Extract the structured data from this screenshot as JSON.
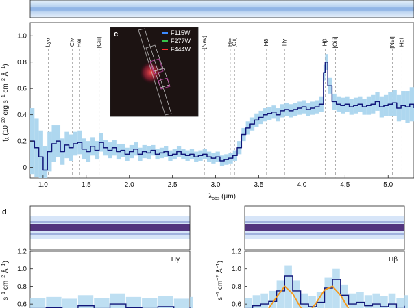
{
  "panel_letters": {
    "inset": "c",
    "bottom": "d"
  },
  "legend": [
    {
      "label": "F115W",
      "color": "#3d8cff"
    },
    {
      "label": "F277W",
      "color": "#36c24a"
    },
    {
      "label": "F444W",
      "color": "#ff3030"
    }
  ],
  "colors": {
    "spectrum_line": "#11177a",
    "error_band": "#aed7ef",
    "fit_curve": "#f39a1f",
    "emission_marker": "#9a9a9a",
    "spectrum2d_dark": "#3a0a5a"
  },
  "chart_data": [
    {
      "id": "main-spectrum",
      "type": "line",
      "ylabel": "f_λ (10⁻²⁰ erg s⁻¹ cm⁻² Å⁻¹)",
      "ylabel_parts": {
        "base": "f",
        "sub": "λ",
        "mid": " (10",
        "sup1": "−20",
        "mid2": " erg s",
        "sup2": "−1",
        "mid3": " cm",
        "sup3": "−2",
        "mid4": " Å",
        "sup4": "−1",
        "end": ")"
      },
      "xlabel_parts": {
        "base": "λ",
        "sub": "obs",
        "end": " (μm)"
      },
      "xlim": [
        0.85,
        5.3
      ],
      "ylim": [
        -0.08,
        1.1
      ],
      "xticks": [
        1.0,
        1.5,
        2.0,
        2.5,
        3.0,
        3.5,
        4.0,
        4.5,
        5.0
      ],
      "xtick_labels": [
        "1.0",
        "1.5",
        "2.0",
        "2.5",
        "3.0",
        "3.5",
        "4.0",
        "4.5",
        "5.0"
      ],
      "yticks": [
        0,
        0.2,
        0.4,
        0.6,
        0.8,
        1.0
      ],
      "ytick_labels": [
        "0",
        "0.2",
        "0.4",
        "0.6",
        "0.8",
        "1.0"
      ],
      "emission_lines": [
        {
          "label": "Lyα",
          "x": 1.06
        },
        {
          "label": "Civ",
          "x": 1.34
        },
        {
          "label": "Heii",
          "x": 1.42
        },
        {
          "label": "[Ciii]",
          "x": 1.65
        },
        {
          "label": "[Nev]",
          "x": 2.87
        },
        {
          "label": "H∞",
          "x": 3.17
        },
        {
          "label": "[Oii]",
          "x": 3.22
        },
        {
          "label": "Hδ",
          "x": 3.59
        },
        {
          "label": "Hγ",
          "x": 3.8
        },
        {
          "label": "Hβ",
          "x": 4.27
        },
        {
          "label": "[Oiii]",
          "x": 4.39
        },
        {
          "label": "[Nei]",
          "x": 5.05
        },
        {
          "label": "Hei",
          "x": 5.16
        }
      ],
      "series": [
        {
          "x": [
            0.85,
            0.9,
            0.95,
            1.0,
            1.05,
            1.1,
            1.15,
            1.2,
            1.25,
            1.3,
            1.35,
            1.4,
            1.45,
            1.5,
            1.55,
            1.6,
            1.65,
            1.7,
            1.75,
            1.8,
            1.85,
            1.9,
            1.95,
            2.0,
            2.05,
            2.1,
            2.15,
            2.2,
            2.25,
            2.3,
            2.35,
            2.4,
            2.45,
            2.5,
            2.55,
            2.6,
            2.65,
            2.7,
            2.75,
            2.8,
            2.85,
            2.9,
            2.95,
            3.0,
            3.05,
            3.1,
            3.15,
            3.2,
            3.25,
            3.3,
            3.35,
            3.4,
            3.45,
            3.5,
            3.55,
            3.6,
            3.65,
            3.7,
            3.75,
            3.8,
            3.85,
            3.9,
            3.95,
            4.0,
            4.05,
            4.1,
            4.15,
            4.2,
            4.25,
            4.27,
            4.3,
            4.35,
            4.4,
            4.45,
            4.5,
            4.55,
            4.6,
            4.65,
            4.7,
            4.75,
            4.8,
            4.85,
            4.9,
            4.95,
            5.0,
            5.05,
            5.1,
            5.15,
            5.2,
            5.25,
            5.3
          ],
          "y": [
            0.2,
            0.15,
            0.08,
            -0.02,
            0.12,
            0.18,
            0.2,
            0.12,
            0.17,
            0.15,
            0.18,
            0.19,
            0.14,
            0.12,
            0.16,
            0.13,
            0.19,
            0.15,
            0.13,
            0.15,
            0.12,
            0.13,
            0.1,
            0.12,
            0.14,
            0.1,
            0.12,
            0.11,
            0.13,
            0.1,
            0.11,
            0.12,
            0.09,
            0.1,
            0.12,
            0.1,
            0.09,
            0.1,
            0.08,
            0.09,
            0.1,
            0.08,
            0.07,
            0.08,
            0.05,
            0.06,
            0.07,
            0.09,
            0.15,
            0.25,
            0.3,
            0.33,
            0.36,
            0.38,
            0.4,
            0.41,
            0.42,
            0.4,
            0.43,
            0.44,
            0.43,
            0.44,
            0.45,
            0.46,
            0.44,
            0.45,
            0.46,
            0.48,
            0.72,
            0.8,
            0.62,
            0.5,
            0.48,
            0.47,
            0.48,
            0.46,
            0.47,
            0.48,
            0.46,
            0.47,
            0.48,
            0.5,
            0.46,
            0.47,
            0.48,
            0.49,
            0.45,
            0.47,
            0.46,
            0.48,
            0.45
          ],
          "err": [
            0.25,
            0.22,
            0.2,
            0.18,
            0.15,
            0.14,
            0.12,
            0.1,
            0.1,
            0.1,
            0.09,
            0.09,
            0.08,
            0.08,
            0.07,
            0.07,
            0.07,
            0.06,
            0.06,
            0.06,
            0.06,
            0.05,
            0.05,
            0.05,
            0.05,
            0.05,
            0.05,
            0.05,
            0.04,
            0.04,
            0.04,
            0.04,
            0.04,
            0.04,
            0.04,
            0.04,
            0.04,
            0.04,
            0.04,
            0.04,
            0.04,
            0.04,
            0.04,
            0.04,
            0.04,
            0.04,
            0.04,
            0.04,
            0.05,
            0.05,
            0.05,
            0.05,
            0.05,
            0.05,
            0.05,
            0.05,
            0.05,
            0.05,
            0.05,
            0.05,
            0.05,
            0.05,
            0.05,
            0.05,
            0.05,
            0.05,
            0.05,
            0.06,
            0.06,
            0.06,
            0.06,
            0.06,
            0.06,
            0.06,
            0.06,
            0.06,
            0.06,
            0.06,
            0.06,
            0.07,
            0.07,
            0.07,
            0.08,
            0.08,
            0.09,
            0.1,
            0.1,
            0.11,
            0.12,
            0.13,
            0.14
          ]
        }
      ]
    },
    {
      "id": "h-gamma-zoom",
      "type": "line",
      "title": "Hγ",
      "ylabel": "s⁻¹ cm⁻² Å⁻¹)",
      "ylabel_parts": {
        "base": "s",
        "sup1": "−1",
        "mid": " cm",
        "sup2": "−2",
        "mid2": " Å",
        "sup3": "−1",
        "end": ")"
      },
      "ylim": [
        0.5,
        1.2
      ],
      "yticks": [
        0.6,
        0.8,
        1.0,
        1.2
      ],
      "ytick_labels": [
        "0.6",
        "0.8",
        "1.0",
        "1.2"
      ],
      "series": [
        {
          "x": [
            0.0,
            0.1,
            0.2,
            0.3,
            0.4,
            0.5,
            0.6,
            0.7,
            0.8,
            0.9,
            1.0
          ],
          "y": [
            0.55,
            0.56,
            0.54,
            0.58,
            0.55,
            0.6,
            0.56,
            0.55,
            0.57,
            0.54,
            0.56
          ]
        }
      ]
    },
    {
      "id": "h-beta-zoom",
      "type": "line",
      "title": "Hβ",
      "ylabel": "s⁻¹ cm⁻² Å⁻¹)",
      "ylabel_parts": {
        "base": "s",
        "sup1": "−1",
        "mid": " cm",
        "sup2": "−2",
        "mid2": " Å",
        "sup3": "−1",
        "end": ")"
      },
      "ylim": [
        0.5,
        1.2
      ],
      "yticks": [
        0.6,
        0.8,
        1.0,
        1.2
      ],
      "ytick_labels": [
        "0.6",
        "0.8",
        "1.0",
        "1.2"
      ],
      "series": [
        {
          "name": "data",
          "x": [
            0.0,
            0.05,
            0.1,
            0.15,
            0.2,
            0.25,
            0.3,
            0.35,
            0.4,
            0.45,
            0.5,
            0.55,
            0.6,
            0.65,
            0.7,
            0.75,
            0.8,
            0.85,
            0.9,
            0.95,
            1.0
          ],
          "y": [
            0.55,
            0.58,
            0.6,
            0.63,
            0.75,
            0.92,
            0.75,
            0.6,
            0.57,
            0.62,
            0.78,
            0.88,
            0.7,
            0.6,
            0.62,
            0.58,
            0.6,
            0.57,
            0.6,
            0.55,
            0.58
          ]
        },
        {
          "name": "fit",
          "x": [
            0.15,
            0.2,
            0.25,
            0.3,
            0.35,
            0.4,
            0.45,
            0.5,
            0.55,
            0.6,
            0.65
          ],
          "y": [
            0.55,
            0.68,
            0.8,
            0.72,
            0.56,
            0.5,
            0.62,
            0.76,
            0.8,
            0.7,
            0.55
          ]
        }
      ]
    }
  ]
}
